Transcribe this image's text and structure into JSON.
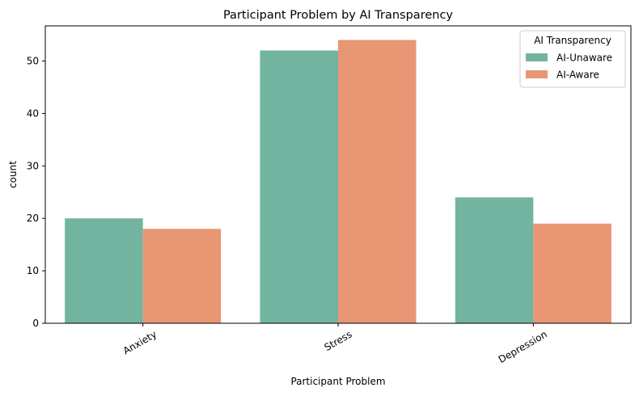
{
  "chart_data": {
    "type": "bar",
    "title": "Participant Problem by AI Transparency",
    "xlabel": "Participant Problem",
    "ylabel": "count",
    "categories": [
      "Anxiety",
      "Stress",
      "Depression"
    ],
    "series": [
      {
        "name": "AI-Unaware",
        "values": [
          20,
          52,
          24
        ],
        "color": "#73b4a0"
      },
      {
        "name": "AI-Aware",
        "values": [
          18,
          54,
          19
        ],
        "color": "#e89674"
      }
    ],
    "ylim": [
      0,
      56.7
    ],
    "yticks": [
      0,
      10,
      20,
      30,
      40,
      50
    ],
    "grid": false,
    "legend": {
      "title": "AI Transparency",
      "placement": "top-right"
    },
    "x_tick_rotation_deg": 30
  }
}
